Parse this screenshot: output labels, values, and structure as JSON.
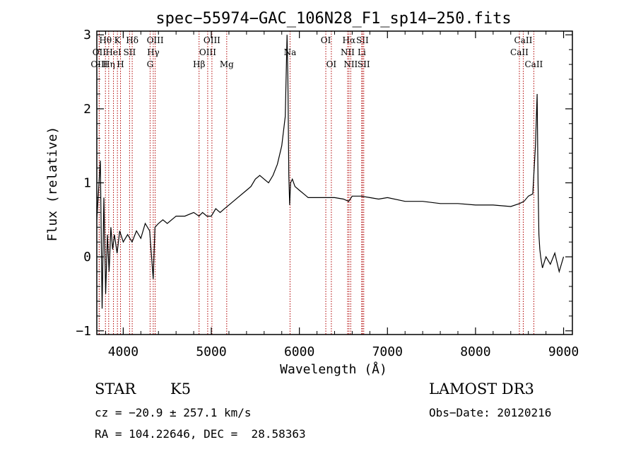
{
  "chart_data": {
    "type": "line",
    "title": "spec−55974−GAC_106N28_F1_sp14−250.fits",
    "xlabel": "Wavelength (Å)",
    "ylabel": "Flux (relative)",
    "xlim": [
      3700,
      9100
    ],
    "ylim": [
      -1.05,
      3.05
    ],
    "xticks": [
      4000,
      5000,
      6000,
      7000,
      8000,
      9000
    ],
    "xtick_labels": [
      "4000",
      "5000",
      "6000",
      "7000",
      "8000",
      "9000"
    ],
    "yticks": [
      -1,
      0,
      1,
      2,
      3
    ],
    "ytick_labels": [
      "−1",
      "0",
      "1",
      "2",
      "3"
    ],
    "grid": false,
    "line_color": "#000000",
    "marker_color": "#b00000",
    "series": [
      {
        "name": "flux",
        "x": [
          3700,
          3740,
          3760,
          3780,
          3800,
          3820,
          3840,
          3860,
          3880,
          3900,
          3930,
          3960,
          4000,
          4050,
          4100,
          4150,
          4200,
          4250,
          4300,
          4340,
          4360,
          4400,
          4450,
          4500,
          4600,
          4700,
          4800,
          4860,
          4900,
          4950,
          5000,
          5050,
          5100,
          5150,
          5200,
          5300,
          5400,
          5450,
          5500,
          5550,
          5600,
          5650,
          5700,
          5750,
          5800,
          5840,
          5860,
          5870,
          5880,
          5890,
          5900,
          5920,
          5950,
          6000,
          6050,
          6100,
          6200,
          6300,
          6400,
          6500,
          6560,
          6600,
          6700,
          6800,
          6900,
          7000,
          7200,
          7400,
          7600,
          7800,
          8000,
          8200,
          8400,
          8500,
          8550,
          8600,
          8650,
          8680,
          8700,
          8710,
          8720,
          8730,
          8740,
          8760,
          8800,
          8850,
          8900,
          8950,
          9000
        ],
        "y": [
          0.5,
          1.3,
          -0.7,
          0.8,
          -0.5,
          0.3,
          -0.2,
          0.4,
          0.1,
          0.3,
          0.05,
          0.35,
          0.2,
          0.3,
          0.2,
          0.35,
          0.25,
          0.45,
          0.35,
          -0.3,
          0.4,
          0.45,
          0.5,
          0.45,
          0.55,
          0.55,
          0.6,
          0.55,
          0.6,
          0.55,
          0.55,
          0.65,
          0.6,
          0.65,
          0.7,
          0.8,
          0.9,
          0.95,
          1.05,
          1.1,
          1.05,
          1.0,
          1.1,
          1.25,
          1.5,
          1.9,
          3.0,
          2.4,
          1.1,
          0.7,
          1.0,
          1.05,
          0.95,
          0.9,
          0.85,
          0.8,
          0.8,
          0.8,
          0.8,
          0.78,
          0.75,
          0.82,
          0.82,
          0.8,
          0.78,
          0.8,
          0.75,
          0.75,
          0.72,
          0.72,
          0.7,
          0.7,
          0.68,
          0.72,
          0.75,
          0.82,
          0.85,
          1.5,
          2.2,
          1.0,
          0.3,
          0.1,
          0.0,
          -0.15,
          0.0,
          -0.1,
          0.05,
          -0.2,
          0.0
        ]
      }
    ],
    "line_markers": [
      {
        "label": "Hθ",
        "x": 3798,
        "row": 0
      },
      {
        "label": "OII",
        "x": 3727,
        "row": 1
      },
      {
        "label": "OIII",
        "x": 3727,
        "row": 2
      },
      {
        "label": "Hη",
        "x": 3835,
        "row": 2
      },
      {
        "label": "HeI",
        "x": 3889,
        "row": 1
      },
      {
        "label": "K",
        "x": 3934,
        "row": 0
      },
      {
        "label": "H",
        "x": 3969,
        "row": 2
      },
      {
        "label": "SII",
        "x": 4072,
        "row": 1
      },
      {
        "label": "Hδ",
        "x": 4102,
        "row": 0
      },
      {
        "label": "OIII",
        "x": 4363,
        "row": 0
      },
      {
        "label": "Hγ",
        "x": 4341,
        "row": 1
      },
      {
        "label": "G",
        "x": 4305,
        "row": 2
      },
      {
        "label": "Hβ",
        "x": 4861,
        "row": 2
      },
      {
        "label": "OIII",
        "x": 4959,
        "row": 1
      },
      {
        "label": "OIII",
        "x": 5007,
        "row": 0
      },
      {
        "label": "Mg",
        "x": 5175,
        "row": 2
      },
      {
        "label": "Na",
        "x": 5894,
        "row": 1
      },
      {
        "label": "OI",
        "x": 6300,
        "row": 0
      },
      {
        "label": "OI",
        "x": 6363,
        "row": 2
      },
      {
        "label": "Hα",
        "x": 6563,
        "row": 0
      },
      {
        "label": "NII",
        "x": 6548,
        "row": 1
      },
      {
        "label": "NII",
        "x": 6583,
        "row": 2
      },
      {
        "label": "Li",
        "x": 6708,
        "row": 1
      },
      {
        "label": "SII",
        "x": 6716,
        "row": 0
      },
      {
        "label": "SII",
        "x": 6731,
        "row": 2
      },
      {
        "label": "CaII",
        "x": 8542,
        "row": 0
      },
      {
        "label": "CaII",
        "x": 8498,
        "row": 1
      },
      {
        "label": "CaII",
        "x": 8662,
        "row": 2
      }
    ]
  },
  "info": {
    "object_class": "STAR",
    "subclass": "K5",
    "survey": "LAMOST DR3",
    "redshift_line": "cz = −20.9 ± 257.1 km/s",
    "obs_date_line": "Obs−Date: 20120216",
    "coords_line": "RA = 104.22646, DEC =  28.58363"
  }
}
